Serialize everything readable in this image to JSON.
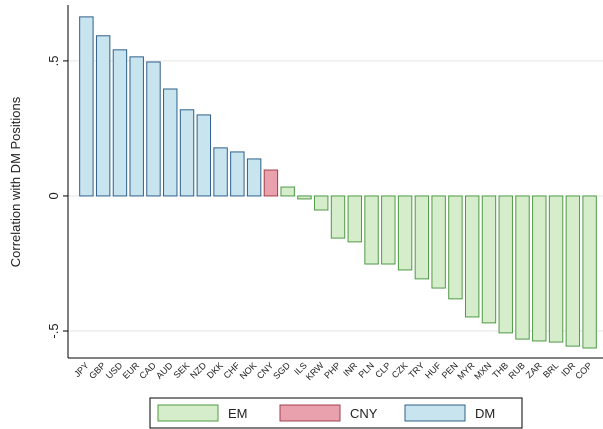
{
  "chart_data": {
    "type": "bar",
    "y_label": "Correlation with DM Positions",
    "categories": [
      "JPY",
      "GBP",
      "USD",
      "EUR",
      "CAD",
      "AUD",
      "SEK",
      "NZD",
      "DKK",
      "CHF",
      "NOK",
      "CNY",
      "SGD",
      "ILS",
      "KRW",
      "PHP",
      "INR",
      "PLN",
      "CLP",
      "CZK",
      "TRY",
      "HUF",
      "PEN",
      "MYR",
      "MXN",
      "THB",
      "RUB",
      "ZAR",
      "BRL",
      "IDR",
      "COP"
    ],
    "series": [
      {
        "name": "EM",
        "color": "#d6edcb",
        "edge": "#4f9a45",
        "values": [
          null,
          null,
          null,
          null,
          null,
          null,
          null,
          null,
          null,
          null,
          null,
          null,
          0.033,
          -0.011,
          -0.052,
          -0.156,
          -0.17,
          -0.252,
          -0.252,
          -0.274,
          -0.307,
          -0.341,
          -0.381,
          -0.448,
          -0.47,
          -0.507,
          -0.53,
          -0.537,
          -0.541,
          -0.556,
          -0.563
        ]
      },
      {
        "name": "CNY",
        "color": "#e8a1ad",
        "edge": "#a3404e",
        "values": [
          null,
          null,
          null,
          null,
          null,
          null,
          null,
          null,
          null,
          null,
          null,
          0.096,
          null,
          null,
          null,
          null,
          null,
          null,
          null,
          null,
          null,
          null,
          null,
          null,
          null,
          null,
          null,
          null,
          null,
          null,
          null
        ]
      },
      {
        "name": "DM",
        "color": "#c8e5ef",
        "edge": "#2f5f8a",
        "values": [
          0.663,
          0.593,
          0.541,
          0.515,
          0.496,
          0.396,
          0.319,
          0.3,
          0.178,
          0.163,
          0.137,
          null,
          null,
          null,
          null,
          null,
          null,
          null,
          null,
          null,
          null,
          null,
          null,
          null,
          null,
          null,
          null,
          null,
          null,
          null,
          null
        ]
      }
    ],
    "ylim": [
      -0.6,
      0.707
    ],
    "yticks": [
      {
        "value": -0.5,
        "label": "-.5"
      },
      0,
      {
        "value": 0.5,
        "label": ".5"
      }
    ],
    "grid": true
  }
}
